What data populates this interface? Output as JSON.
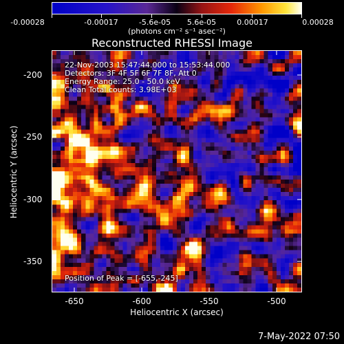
{
  "colorbar": {
    "tick_labels": [
      "-0.00028",
      "-0.00017",
      "-5.6e-05",
      "5.6e-05",
      "0.00017",
      "0.00028"
    ],
    "units": "(photons cm⁻² s⁻¹ asec⁻²)"
  },
  "title": "Reconstructed RHESSI Image",
  "info": {
    "time": "22-Nov-2003 15:47:44.000 to 15:53:44.000",
    "detectors": "Detectors: 3F 4F 5F 6F 7F 8F, Att 0",
    "energy": "Energy Range: 25.0 - 50.0 keV",
    "method": "Clean     Total counts: 3.98E+03",
    "peak": "Position of Peak = [-655,-245]"
  },
  "axes": {
    "xlabel": "Heliocentric X (arcsec)",
    "ylabel": "Heliocentric Y (arcsec)",
    "x_ticks": [
      "-650",
      "-600",
      "-550",
      "-500"
    ],
    "y_ticks": [
      "-200",
      "-250",
      "-300",
      "-350"
    ]
  },
  "timestamp": "7-May-2022 07:50"
}
